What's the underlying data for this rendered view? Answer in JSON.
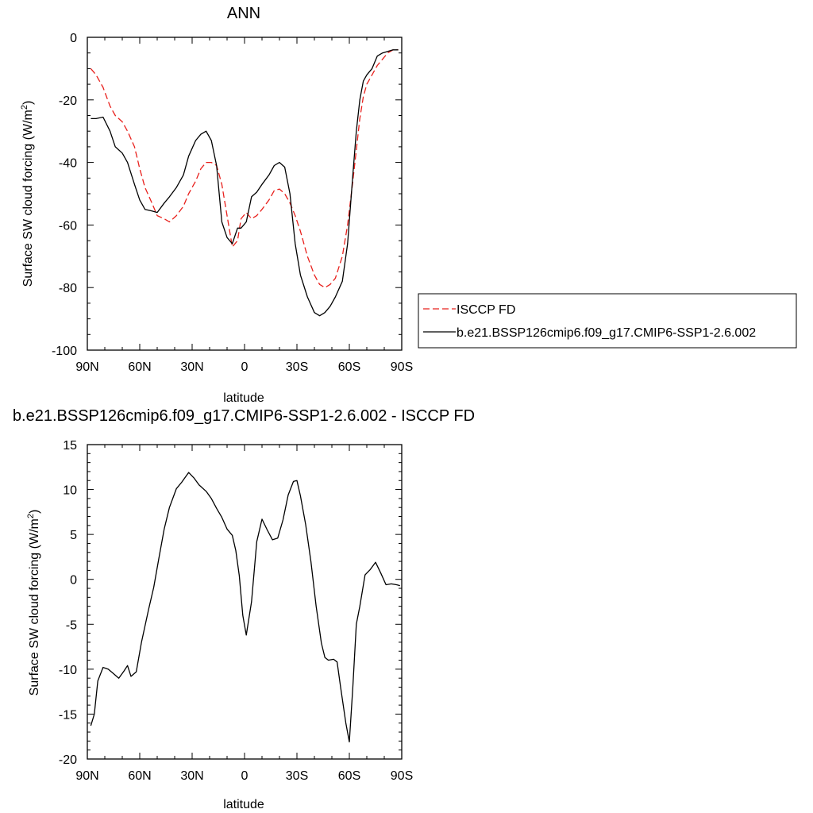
{
  "chart_data": [
    {
      "type": "line",
      "title": "ANN",
      "xlabel": "latitude",
      "ylabel": "Surface SW cloud forcing (W/m²)",
      "ylabel_parts": {
        "pre": "Surface SW cloud forcing (W/m",
        "sup": "2",
        "post": ")"
      },
      "xlim": [
        -90,
        90
      ],
      "ylim": [
        -100,
        0
      ],
      "x_ticks": [
        -90,
        -60,
        -30,
        0,
        30,
        60,
        90
      ],
      "x_tick_labels": [
        "90N",
        "60N",
        "30N",
        "0",
        "30S",
        "60S",
        "90S"
      ],
      "y_ticks": [
        -100,
        -80,
        -60,
        -40,
        -20,
        0
      ],
      "y_tick_labels": [
        "-100",
        "-80",
        "-60",
        "-40",
        "-20",
        "0"
      ],
      "legend_position": "right",
      "series": [
        {
          "name": "ISCCP FD",
          "color": "#e8201c",
          "dash": "dashed",
          "x": [
            -88,
            -85,
            -81,
            -77,
            -74,
            -70,
            -67,
            -63,
            -60,
            -57,
            -53,
            -50,
            -46,
            -43,
            -39,
            -35,
            -32,
            -28,
            -25,
            -22,
            -19,
            -16,
            -13,
            -10,
            -7,
            -4,
            -2,
            1,
            4,
            7,
            10,
            14,
            17,
            20,
            23,
            26,
            29,
            32,
            36,
            40,
            43,
            46,
            49,
            52,
            56,
            59,
            62,
            64,
            66,
            68,
            70,
            73,
            76,
            79,
            82,
            85,
            88
          ],
          "y": [
            -10,
            -12,
            -16,
            -22,
            -25,
            -27,
            -30,
            -35,
            -42,
            -48,
            -53,
            -57,
            -58,
            -59,
            -57,
            -54,
            -50,
            -46,
            -42,
            -40,
            -40,
            -41,
            -47,
            -57,
            -67,
            -65,
            -58,
            -56,
            -58,
            -57,
            -55,
            -52,
            -49,
            -48.5,
            -50,
            -53,
            -57,
            -62,
            -70,
            -76,
            -79,
            -80,
            -79,
            -77,
            -70,
            -60,
            -46,
            -36,
            -26,
            -19,
            -15,
            -12,
            -9,
            -7,
            -5,
            -4,
            -4
          ]
        },
        {
          "name": "b.e21.BSSP126cmip6.f09_g17.CMIP6-SSP1-2.6.002",
          "color": "#000000",
          "dash": "solid",
          "x": [
            -88,
            -85,
            -81,
            -77,
            -74,
            -70,
            -67,
            -63,
            -60,
            -57,
            -53,
            -50,
            -46,
            -43,
            -39,
            -35,
            -32,
            -28,
            -25,
            -22,
            -19,
            -16,
            -13,
            -10,
            -7,
            -4,
            -2,
            1,
            4,
            7,
            10,
            14,
            17,
            20,
            23,
            26,
            29,
            32,
            36,
            40,
            43,
            46,
            49,
            52,
            56,
            59,
            62,
            64,
            66,
            68,
            70,
            73,
            76,
            79,
            82,
            85,
            88
          ],
          "y": [
            -26,
            -26,
            -25.5,
            -30,
            -35,
            -37,
            -40,
            -47,
            -52,
            -55,
            -55.5,
            -56,
            -53,
            -51,
            -48,
            -44,
            -38,
            -33,
            -31,
            -30,
            -33,
            -41,
            -59,
            -64,
            -66,
            -61,
            -61,
            -59,
            -51,
            -49.5,
            -47,
            -44,
            -41,
            -40,
            -41.5,
            -50,
            -66,
            -76,
            -83,
            -88,
            -89,
            -88,
            -86,
            -83,
            -78,
            -66,
            -44,
            -30,
            -20,
            -14,
            -12,
            -10,
            -6,
            -5,
            -4.5,
            -4,
            -4
          ]
        }
      ]
    },
    {
      "type": "line",
      "title": "b.e21.BSSP126cmip6.f09_g17.CMIP6-SSP1-2.6.002 - ISCCP FD",
      "xlabel": "latitude",
      "ylabel": "Surface SW cloud forcing (W/m²)",
      "ylabel_parts": {
        "pre": "Surface SW cloud forcing (W/m",
        "sup": "2",
        "post": ")"
      },
      "xlim": [
        -90,
        90
      ],
      "ylim": [
        -20,
        15
      ],
      "x_ticks": [
        -90,
        -60,
        -30,
        0,
        30,
        60,
        90
      ],
      "x_tick_labels": [
        "90N",
        "60N",
        "30N",
        "0",
        "30S",
        "60S",
        "90S"
      ],
      "y_ticks": [
        -20,
        -15,
        -10,
        -5,
        0,
        5,
        10,
        15
      ],
      "y_tick_labels": [
        "-20",
        "-15",
        "-10",
        "-5",
        "0",
        "5",
        "10",
        "15"
      ],
      "series": [
        {
          "color": "#000000",
          "dash": "solid",
          "x": [
            -88,
            -86,
            -84,
            -81,
            -78,
            -75,
            -72,
            -69,
            -67,
            -65,
            -62,
            -59,
            -55,
            -52,
            -49,
            -46,
            -43,
            -39,
            -36,
            -32,
            -29,
            -26,
            -22,
            -19,
            -16,
            -13,
            -10,
            -7,
            -5,
            -3,
            -1,
            1,
            4,
            7,
            10,
            13,
            16,
            19,
            22,
            25,
            28,
            30,
            32,
            35,
            38,
            41,
            44,
            46,
            48,
            51,
            53,
            55,
            58,
            60,
            62,
            64,
            66,
            69,
            72,
            75,
            78,
            81,
            84,
            87,
            89
          ],
          "y": [
            -16.3,
            -15,
            -11.3,
            -9.8,
            -10,
            -10.5,
            -11,
            -10.2,
            -9.6,
            -10.8,
            -10.3,
            -7,
            -3.4,
            -0.9,
            2.4,
            5.6,
            8,
            10.1,
            10.8,
            11.9,
            11.3,
            10.5,
            9.8,
            9,
            7.9,
            6.9,
            5.6,
            4.9,
            3.2,
            0.4,
            -4,
            -6.2,
            -2.5,
            4.2,
            6.7,
            5.5,
            4.4,
            4.6,
            6.6,
            9.4,
            10.9,
            11,
            9.3,
            6.1,
            2,
            -3,
            -7.1,
            -8.7,
            -9,
            -8.9,
            -9.2,
            -12,
            -16,
            -18.1,
            -12,
            -5,
            -3,
            0.5,
            1.1,
            1.9,
            0.7,
            -0.6,
            -0.5,
            -0.6,
            -0.7
          ]
        }
      ]
    }
  ]
}
